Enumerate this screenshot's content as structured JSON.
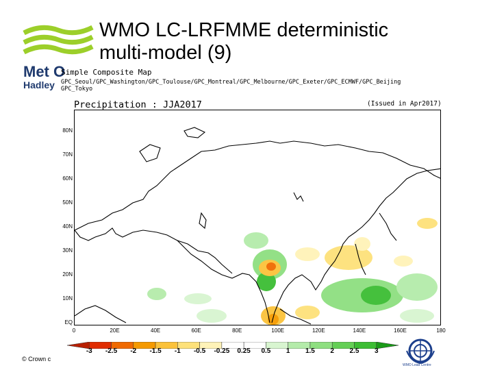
{
  "slide": {
    "title_line1": "WMO LC-LRFMME deterministic",
    "title_line2": "multi-model (9)"
  },
  "logo": {
    "text1": "Met O",
    "text2": "Hadley",
    "icon": "met-office-waves-logo"
  },
  "map": {
    "subtitle": "Simple Composite Map",
    "gpc_list": "GPC_Seoul/GPC_Washington/GPC_Toulouse/GPC_Montreal/GPC_Melbourne/GPC_Exeter/GPC_ECMWF/GPC_Beijing",
    "gpc_list2": "GPC_Tokyo",
    "title": "Precipitation : JJA2017",
    "issued": "(Issued in Apr2017)",
    "lat_labels": [
      "80N",
      "70N",
      "60N",
      "50N",
      "40N",
      "30N",
      "20N",
      "10N",
      "EQ"
    ],
    "lon_labels": [
      "0",
      "20E",
      "40E",
      "60E",
      "80E",
      "100E",
      "120E",
      "140E",
      "160E",
      "180"
    ]
  },
  "colorbar": {
    "labels": [
      "-3",
      "-2.5",
      "-2",
      "-1.5",
      "-1",
      "-0.5",
      "-0.25",
      "0.25",
      "0.5",
      "1",
      "1.5",
      "2",
      "2.5",
      "3"
    ],
    "colors": [
      "#e02c00",
      "#f06a00",
      "#f59a00",
      "#fbc23a",
      "#fde17a",
      "#fff3b8",
      "#ffffff",
      "#ffffff",
      "#d8f5d0",
      "#b4ebaa",
      "#8edf80",
      "#64cf55",
      "#3cbd33",
      "#1a9a18"
    ]
  },
  "footer": {
    "copyright": "© Crown c",
    "wmo_text": "WMO Lead Centre"
  }
}
